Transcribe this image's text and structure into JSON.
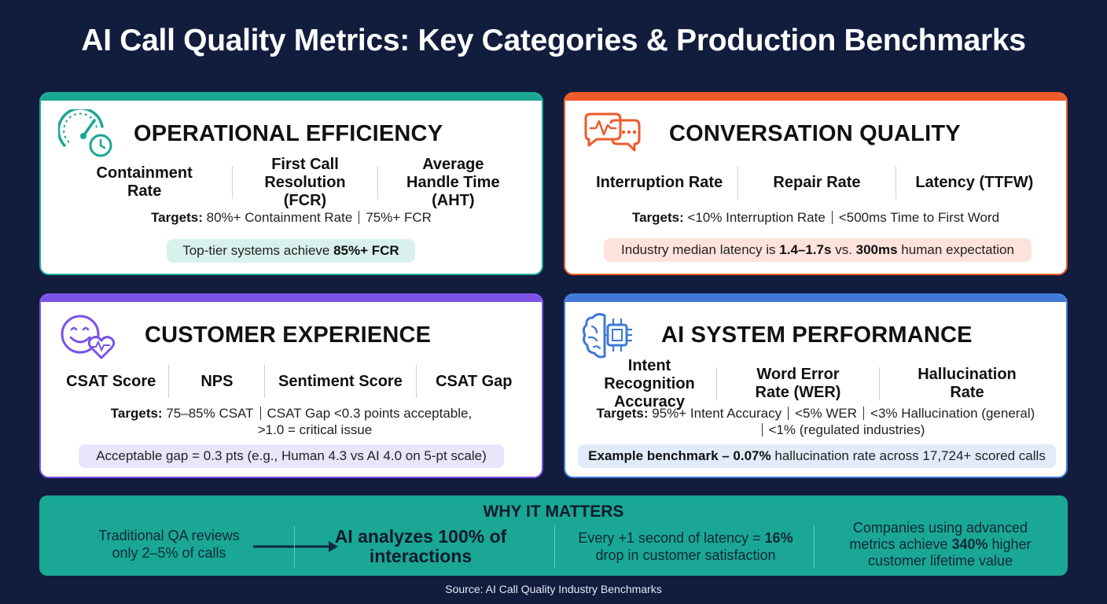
{
  "title": "AI Call Quality Metrics: Key Categories & Production Benchmarks",
  "cards": {
    "operational": {
      "title": "OPERATIONAL EFFICIENCY",
      "icon": "speedometer-clock-icon",
      "accent": "#1aa795",
      "metrics": [
        "Containment Rate",
        "First Call Resolution (FCR)",
        "Average Handle Time (AHT)"
      ],
      "targets_label": "Targets:",
      "targets": [
        "80%+ Containment Rate",
        "75%+ FCR"
      ],
      "highlight_pre": "Top-tier systems achieve ",
      "highlight_bold": "85%+ FCR",
      "highlight_post": ""
    },
    "conversation": {
      "title": "CONVERSATION QUALITY",
      "icon": "chat-bubbles-icon",
      "accent": "#f05a2b",
      "metrics": [
        "Interruption Rate",
        "Repair Rate",
        "Latency (TTFW)"
      ],
      "targets_label": "Targets:",
      "targets": [
        "<10% Interruption Rate",
        "<500ms Time to First Word"
      ],
      "highlight_pre": "Industry median latency is ",
      "highlight_bold": "1.4–1.7s",
      "highlight_mid": " vs. ",
      "highlight_bold2": "300ms",
      "highlight_post": " human expectation"
    },
    "customer": {
      "title": "CUSTOMER EXPERIENCE",
      "icon": "smile-heart-icon",
      "accent": "#7b52e8",
      "metrics": [
        "CSAT Score",
        "NPS",
        "Sentiment Score",
        "CSAT Gap"
      ],
      "targets_label": "Targets:",
      "targets_line1": "75–85% CSAT",
      "targets_line1b": "CSAT Gap <0.3 points acceptable,",
      "targets_line2": ">1.0 = critical issue",
      "highlight_pre": "Acceptable gap = 0.3 pts (e.g., Human 4.3 vs AI 4.0 on 5-pt scale)"
    },
    "ai": {
      "title": "AI SYSTEM PERFORMANCE",
      "icon": "brain-chip-icon",
      "accent": "#3f78d6",
      "metrics": [
        "Intent Recognition Accuracy",
        "Word Error Rate (WER)",
        "Hallucination Rate"
      ],
      "targets_label": "Targets:",
      "targets_line1": [
        "95%+ Intent Accuracy",
        "<5% WER",
        "<3% Hallucination (general)"
      ],
      "targets_line2": "<1% (regulated industries)",
      "highlight_bold": "Example benchmark – 0.07%",
      "highlight_post": " hallucination rate across 17,724+ scored calls"
    }
  },
  "why": {
    "title": "WHY IT MATTERS",
    "col1": "Traditional QA reviews only 2–5% of calls",
    "col2": "AI analyzes 100% of interactions",
    "col3_pre": "Every +1 second of latency = ",
    "col3_bold": "16%",
    "col3_post": " drop in customer satisfaction",
    "col4_pre": "Companies using advanced metrics achieve ",
    "col4_bold": "340%",
    "col4_post": " higher customer lifetime value"
  },
  "source": "Source: AI Call Quality Industry Benchmarks"
}
